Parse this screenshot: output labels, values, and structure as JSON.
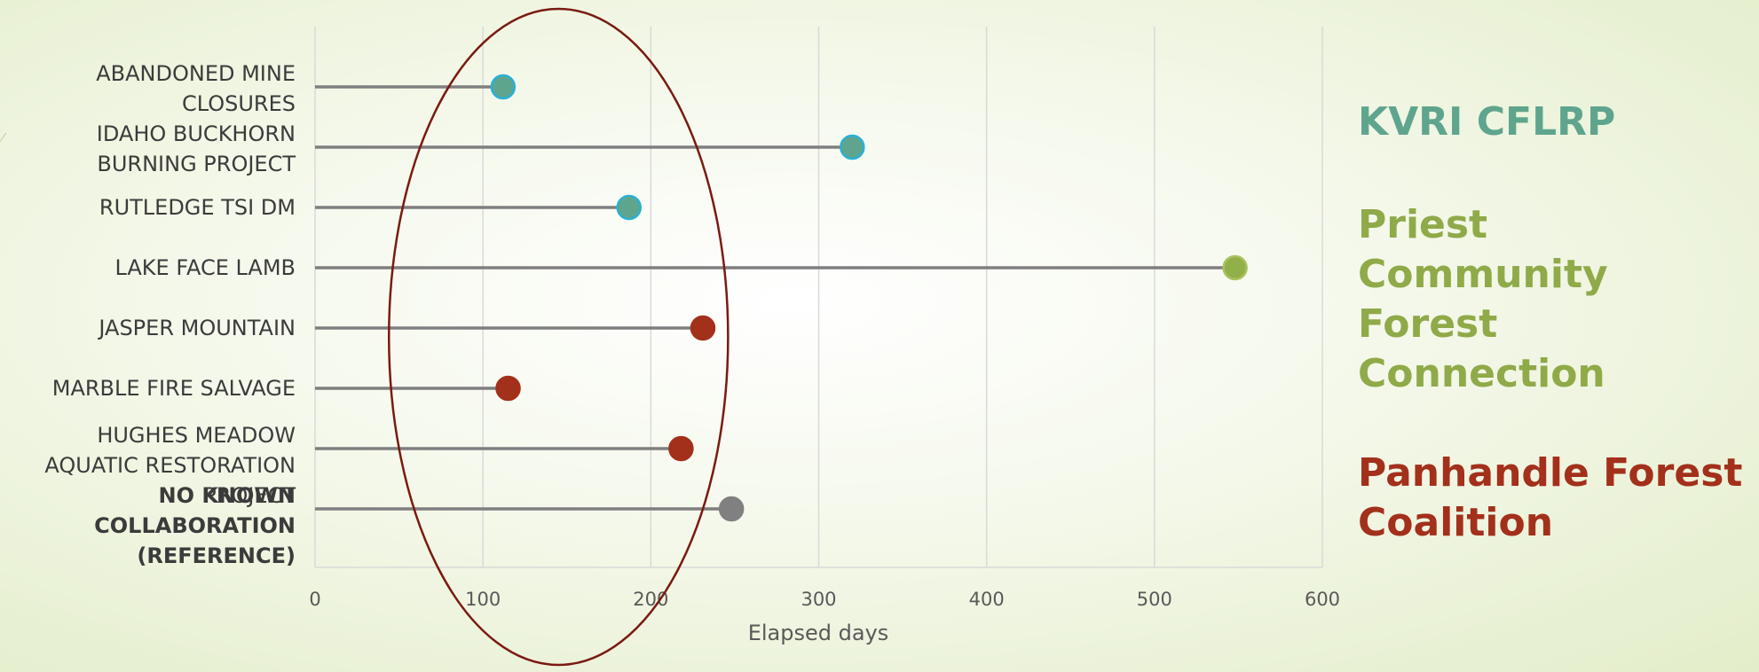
{
  "chart_data": {
    "type": "lollipop",
    "xlabel": "Elapsed days",
    "xlim": [
      0,
      600
    ],
    "xticks": [
      "0",
      "100",
      "200",
      "300",
      "400",
      "500",
      "600"
    ],
    "grid": true,
    "categories": [
      {
        "lines": [
          "ABANDONED MINE",
          "CLOSURES"
        ],
        "value": 112,
        "color": "#5fa58d",
        "ring": "#2ab0d6",
        "bold": false
      },
      {
        "lines": [
          "IDAHO BUCKHORN",
          "BURNING PROJECT"
        ],
        "value": 320,
        "color": "#5fa58d",
        "ring": "#2ab0d6",
        "bold": false
      },
      {
        "lines": [
          "RUTLEDGE TSI DM"
        ],
        "value": 187,
        "color": "#5fa58d",
        "ring": "#2ab0d6",
        "bold": false
      },
      {
        "lines": [
          "LAKE FACE LAMB"
        ],
        "value": 548,
        "color": "#92b04a",
        "ring": "#a9c25f",
        "bold": false
      },
      {
        "lines": [
          "JASPER MOUNTAIN"
        ],
        "value": 231,
        "color": "#a3301b",
        "ring": "#a3301b",
        "bold": false
      },
      {
        "lines": [
          "MARBLE FIRE SALVAGE"
        ],
        "value": 115,
        "color": "#a3301b",
        "ring": "#a3301b",
        "bold": false
      },
      {
        "lines": [
          "HUGHES MEADOW",
          "AQUATIC RESTORATION",
          "PROJECT"
        ],
        "value": 218,
        "color": "#a3301b",
        "ring": "#a3301b",
        "bold": false
      },
      {
        "lines": [
          "NO KNOWN",
          "COLLABORATION",
          "(REFERENCE)"
        ],
        "value": 248,
        "color": "#808080",
        "ring": "#808080",
        "bold": true
      }
    ],
    "annotation": {
      "shape": "ellipse",
      "x_center": 145,
      "x_half_width": 101,
      "color": "#7a1a10"
    }
  },
  "legend": [
    {
      "text": "KVRI CFLRP",
      "color": "#5fa58d"
    },
    {
      "text": "Priest Community Forest Connection",
      "color": "#8faa48"
    },
    {
      "text": "Panhandle Forest Coalition",
      "color": "#a3301b"
    }
  ]
}
